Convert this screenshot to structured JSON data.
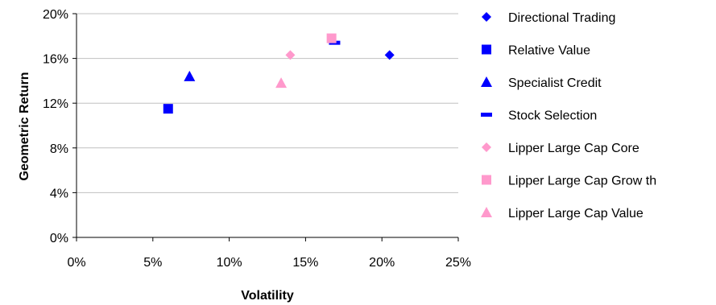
{
  "chart_data": {
    "type": "scatter",
    "title": "",
    "xlabel": "Volatility",
    "ylabel": "Geometric Return",
    "xlim": [
      0,
      25
    ],
    "ylim": [
      0,
      20
    ],
    "x_ticks": [
      0,
      5,
      10,
      15,
      20,
      25
    ],
    "y_ticks": [
      0,
      4,
      8,
      12,
      16,
      20
    ],
    "x_tick_labels": [
      "0%",
      "5%",
      "10%",
      "15%",
      "20%",
      "25%"
    ],
    "y_tick_labels": [
      "0%",
      "4%",
      "8%",
      "12%",
      "16%",
      "20%"
    ],
    "grid": "horizontal",
    "legend_position": "right",
    "series": [
      {
        "name": "Directional Trading",
        "marker": "diamond",
        "color": "#0000ff",
        "points": [
          {
            "x": 20.5,
            "y": 16.3
          }
        ]
      },
      {
        "name": "Relative Value",
        "marker": "square",
        "color": "#0000ff",
        "points": [
          {
            "x": 6.0,
            "y": 11.5
          }
        ]
      },
      {
        "name": "Specialist Credit",
        "marker": "triangle",
        "color": "#0000ff",
        "points": [
          {
            "x": 7.4,
            "y": 14.4
          }
        ]
      },
      {
        "name": "Stock Selection",
        "marker": "dash",
        "color": "#0000ff",
        "points": [
          {
            "x": 16.9,
            "y": 17.4
          }
        ]
      },
      {
        "name": "Lipper Large Cap Core",
        "marker": "diamond",
        "color": "#ff99cc",
        "points": [
          {
            "x": 14.0,
            "y": 16.3
          }
        ]
      },
      {
        "name": "Lipper Large Cap Grow th",
        "marker": "square",
        "color": "#ff99cc",
        "points": [
          {
            "x": 16.7,
            "y": 17.8
          }
        ]
      },
      {
        "name": "Lipper Large Cap Value",
        "marker": "triangle",
        "color": "#ff99cc",
        "points": [
          {
            "x": 13.4,
            "y": 13.8
          }
        ]
      }
    ]
  }
}
